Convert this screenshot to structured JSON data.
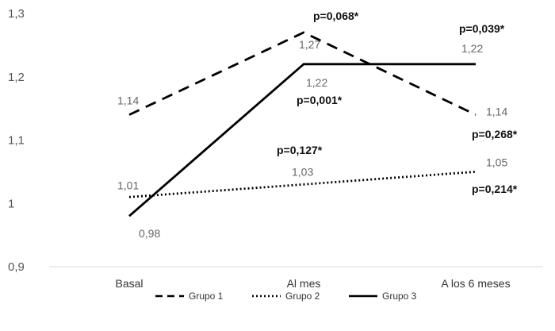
{
  "chart_data": {
    "type": "line",
    "categories": [
      "Basal",
      "Al mes",
      "A los 6 meses"
    ],
    "ylim": [
      0.9,
      1.3
    ],
    "y_ticks": [
      "0,9",
      "1",
      "1,1",
      "1,2",
      "1,3"
    ],
    "grid": false,
    "legend_position": "bottom",
    "series": [
      {
        "name": "Grupo 1",
        "style": "dashed",
        "color": "#000000",
        "values": [
          1.14,
          1.27,
          1.14
        ],
        "labels": [
          "1,14",
          "1,27",
          "1,14"
        ]
      },
      {
        "name": "Grupo 2",
        "style": "dotted",
        "color": "#000000",
        "values": [
          1.01,
          1.03,
          1.05
        ],
        "labels": [
          "1,01",
          "1,03",
          "1,05"
        ]
      },
      {
        "name": "Grupo 3",
        "style": "solid",
        "color": "#000000",
        "values": [
          0.98,
          1.22,
          1.22
        ],
        "labels": [
          "0,98",
          "1,22",
          "1,22"
        ]
      }
    ],
    "annotations": [
      {
        "text": "p=0,068*"
      },
      {
        "text": "p=0,039*"
      },
      {
        "text": "p=0,001*"
      },
      {
        "text": "p=0,268*"
      },
      {
        "text": "p=0,127*"
      },
      {
        "text": "p=0,214*"
      }
    ]
  }
}
